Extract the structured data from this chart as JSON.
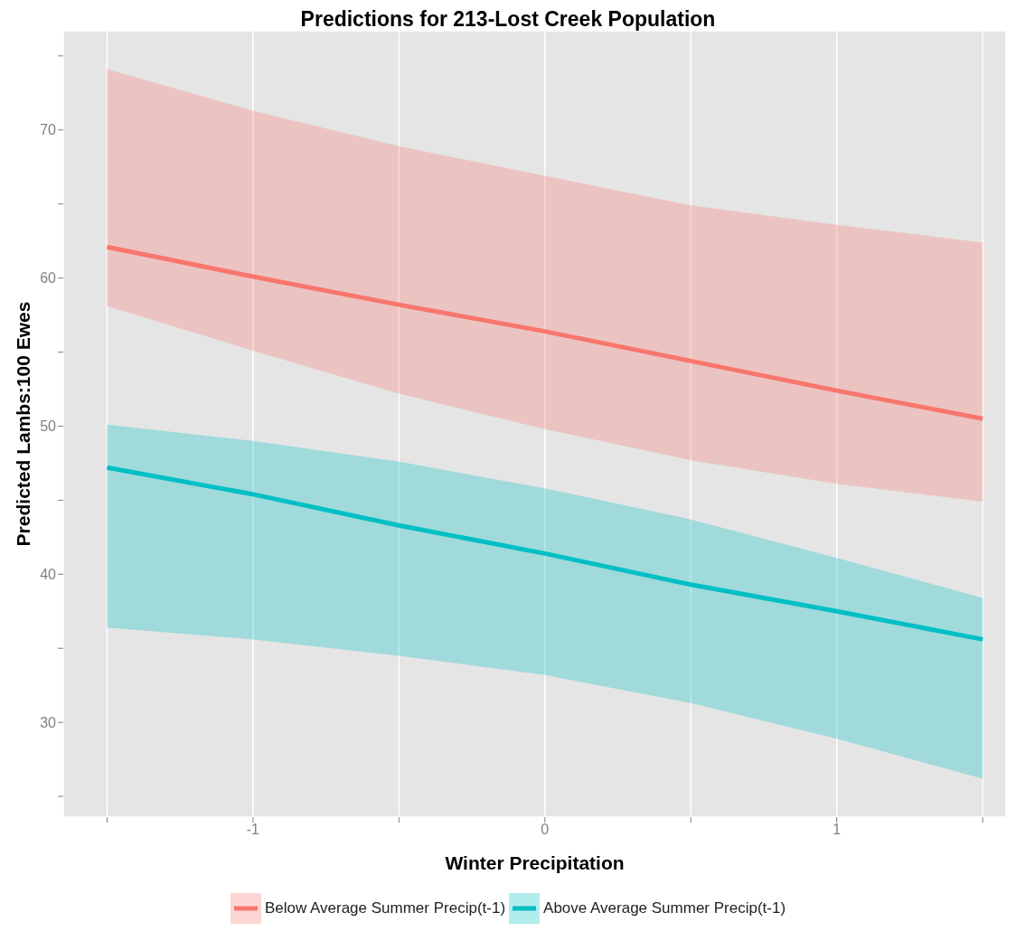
{
  "chart_data": {
    "type": "line",
    "title": "Predictions for 213-Lost Creek Population",
    "xlabel": "Winter Precipitation",
    "ylabel": "Predicted Lambs:100 Ewes",
    "x": [
      -1.5,
      -1,
      -0.5,
      0,
      0.5,
      1,
      1.5
    ],
    "series": [
      {
        "name": "Below Average Summer Precip(t-1)",
        "color": "#f8766d",
        "values": [
          62.1,
          60.1,
          58.2,
          56.4,
          54.4,
          52.4,
          50.5
        ],
        "lower": [
          58.1,
          55.1,
          52.2,
          49.8,
          47.7,
          46.1,
          44.9
        ],
        "upper": [
          74.1,
          71.3,
          68.9,
          66.9,
          64.9,
          63.6,
          62.4
        ]
      },
      {
        "name": "Above Average Summer Precip(t-1)",
        "color": "#00bfc4",
        "values": [
          47.2,
          45.4,
          43.3,
          41.4,
          39.3,
          37.5,
          35.6
        ],
        "lower": [
          36.4,
          35.6,
          34.5,
          33.2,
          31.3,
          28.9,
          26.2
        ],
        "upper": [
          50.1,
          49.0,
          47.6,
          45.8,
          43.7,
          41.1,
          38.4
        ]
      }
    ],
    "xlim": [
      -1.65,
      1.58
    ],
    "ylim": [
      23.6,
      76.7
    ],
    "xticks": [
      {
        "value": -1.5,
        "label": null
      },
      -1,
      {
        "value": -0.5,
        "label": null
      },
      0,
      {
        "value": 0.5,
        "label": null
      },
      1,
      {
        "value": 1.5,
        "label": null
      }
    ],
    "yticks": [
      {
        "value": 25,
        "label": null
      },
      30,
      {
        "value": 35,
        "label": null
      },
      40,
      {
        "value": 45,
        "label": null
      },
      50,
      {
        "value": 55,
        "label": null
      },
      60,
      {
        "value": 65,
        "label": null
      },
      70,
      {
        "value": 75,
        "label": null
      }
    ],
    "grid": true,
    "legend": "bottom"
  }
}
